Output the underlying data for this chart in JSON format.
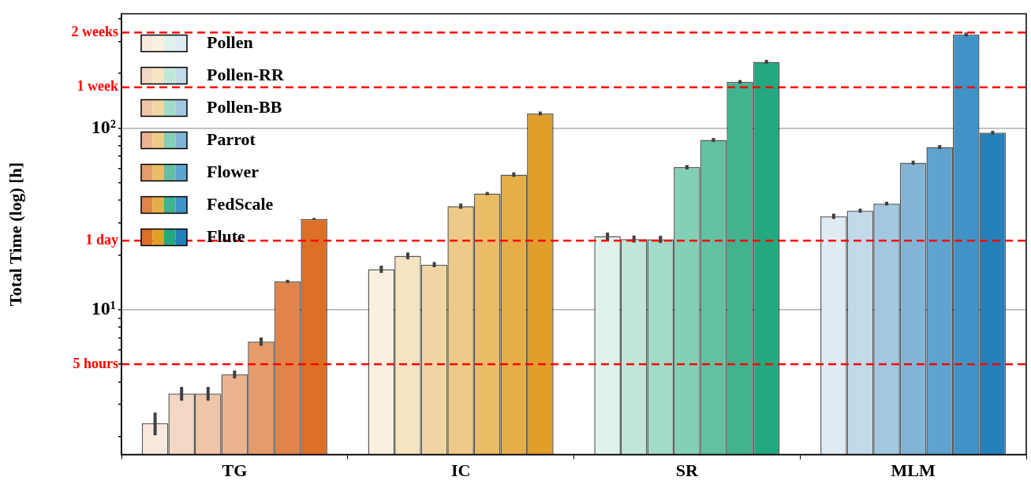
{
  "chart_data": {
    "type": "bar",
    "ylabel": "Total Time (log) [h]",
    "categories": [
      "TG",
      "IC",
      "SR",
      "MLM"
    ],
    "log": true,
    "grid": "y",
    "legend": "top left",
    "ylim": [
      1.59,
      427
    ],
    "yticks": [
      {
        "value": 2,
        "label": null
      },
      {
        "value": 3,
        "label": null
      },
      {
        "value": 4,
        "label": null
      },
      {
        "value": 5,
        "label": null
      },
      {
        "value": 6,
        "label": null
      },
      {
        "value": 7,
        "label": null
      },
      {
        "value": 8,
        "label": null
      },
      {
        "value": 9,
        "label": null
      },
      {
        "value": 10,
        "label": "10¹"
      },
      {
        "value": 20,
        "label": null
      },
      {
        "value": 30,
        "label": null
      },
      {
        "value": 40,
        "label": null
      },
      {
        "value": 50,
        "label": null
      },
      {
        "value": 60,
        "label": null
      },
      {
        "value": 70,
        "label": null
      },
      {
        "value": 80,
        "label": null
      },
      {
        "value": 90,
        "label": null
      },
      {
        "value": 100,
        "label": "10²"
      },
      {
        "value": 200,
        "label": null
      },
      {
        "value": 300,
        "label": null
      },
      {
        "value": 400,
        "label": null
      }
    ],
    "ref_lines": [
      {
        "axis": "y",
        "value": 336,
        "label": "2 weeks",
        "color": "#ff0000",
        "line_style": "dashed"
      },
      {
        "axis": "y",
        "value": 168,
        "label": "1 week",
        "color": "#ff0000",
        "line_style": "dashed"
      },
      {
        "axis": "y",
        "value": 24,
        "label": "1 day",
        "color": "#ff0000",
        "line_style": "dashed"
      },
      {
        "axis": "y",
        "value": 5,
        "label": "5 hours",
        "color": "#ff0000",
        "line_style": "dashed"
      }
    ],
    "series": [
      {
        "name": "Pollen",
        "colors": [
          "#f8e9de",
          "#f9f0df",
          "#e0f2ec",
          "#dfeaf3"
        ],
        "values": [
          2.37,
          16.7,
          25.4,
          32.7
        ],
        "errors": [
          0.34,
          0.77,
          1.2,
          1.1
        ]
      },
      {
        "name": "Pollen-RR",
        "colors": [
          "#f2d7c4",
          "#f6e3c2",
          "#c0e6d9",
          "#c2d9ea"
        ],
        "values": [
          3.45,
          19.8,
          24.5,
          35.1
        ],
        "errors": [
          0.3,
          0.85,
          1.1,
          0.9
        ]
      },
      {
        "name": "Pollen-BB",
        "colors": [
          "#efc5a8",
          "#f1d6a4",
          "#a2dbc8",
          "#a3c7e1"
        ],
        "values": [
          3.45,
          17.7,
          24.4,
          38.4
        ],
        "errors": [
          0.3,
          0.58,
          1.1,
          0.9
        ]
      },
      {
        "name": "Parrot",
        "colors": [
          "#ebb38e",
          "#edca87",
          "#84d0b6",
          "#82b4d6"
        ],
        "values": [
          4.4,
          37.2,
          60.9,
          64.5
        ],
        "errors": [
          0.22,
          1.2,
          1.7,
          1.7
        ]
      },
      {
        "name": "Flower",
        "colors": [
          "#e69b6a",
          "#e9bc65",
          "#62c1a3",
          "#5fa3cf"
        ],
        "values": [
          6.67,
          43.6,
          86.1,
          78.7
        ],
        "errors": [
          0.35,
          0.9,
          2.2,
          2
        ]
      },
      {
        "name": "FedScale",
        "colors": [
          "#e0844a",
          "#e5ae48",
          "#42b38f",
          "#3f93c6"
        ],
        "values": [
          14.3,
          55.5,
          180,
          328
        ],
        "errors": [
          0.3,
          1.6,
          4,
          8
        ]
      },
      {
        "name": "Flute",
        "colors": [
          "#dc7026",
          "#e09f2a",
          "#24a880",
          "#2380ba"
        ],
        "values": [
          31.6,
          120.5,
          232,
          94.4
        ],
        "errors": [
          0.4,
          2.9,
          5.6,
          2.2
        ]
      }
    ]
  }
}
